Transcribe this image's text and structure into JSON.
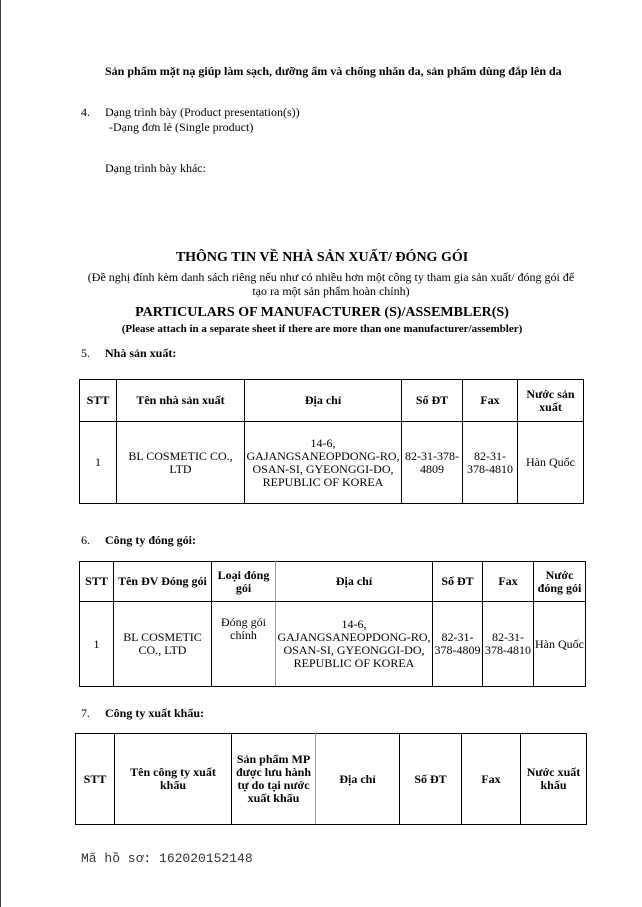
{
  "intro": {
    "product_desc": "Sản phẩm mặt nạ giúp làm sạch, dưỡng ẩm và chống nhăn da, sản phẩm dùng đắp lên da",
    "item4_num": "4.",
    "item4_label": "Dạng trình bày (Product presentation(s))",
    "item4_value": "-Dạng đơn lẻ (Single product)",
    "other_label": "Dạng trình bày khác:"
  },
  "section": {
    "title_vi": "THÔNG TIN VỀ NHÀ SẢN XUẤT/ ĐÓNG GÓI",
    "note_vi": "(Đề nghị đính kèm danh sách riêng nếu như có nhiều hơn một công ty tham gia sản xuất/ đóng gói để tạo ra một sản phẩm hoàn chỉnh)",
    "title_en": "PARTICULARS OF MANUFACTURER (S)/ASSEMBLER(S)",
    "note_en": "(Please attach in a separate sheet if there are more than one manufacturer/assembler)"
  },
  "manufacturer": {
    "num": "5.",
    "label": "Nhà sản xuất:",
    "headers": [
      "STT",
      "Tên nhà sản xuất",
      "Địa chỉ",
      "Số ĐT",
      "Fax",
      "Nước sản xuất"
    ],
    "rows": [
      [
        "1",
        "BL COSMETIC CO., LTD",
        "14-6, GAJANGSANEOPDONG-RO, OSAN-SI, GYEONGGI-DO, REPUBLIC OF KOREA",
        "82-31-378-4809",
        "82-31-378-4810",
        "Hàn Quốc"
      ]
    ]
  },
  "packager": {
    "num": "6.",
    "label": "Công ty đóng gói:",
    "headers": [
      "STT",
      "Tên ĐV Đóng gói",
      "Loại đóng gói",
      "Địa chỉ",
      "Số ĐT",
      "Fax",
      "Nước đóng gói"
    ],
    "rows": [
      [
        "1",
        "BL COSMETIC CO., LTD",
        "Đóng gói chính",
        "14-6, GAJANGSANEOPDONG-RO, OSAN-SI, GYEONGGI-DO, REPUBLIC OF KOREA",
        "82-31-378-4809",
        "82-31-378-4810",
        "Hàn Quốc"
      ]
    ]
  },
  "exporter": {
    "num": "7.",
    "label": "Công ty xuất khẩu:",
    "headers": [
      "STT",
      "Tên công ty xuất khẩu",
      "Sản phẩm MP được lưu hành tự do tại nước xuất khẩu",
      "Địa chỉ",
      "Số ĐT",
      "Fax",
      "Nước xuất khẩu"
    ]
  },
  "footer": {
    "file_code": "Mã hồ sơ: 162020152148"
  }
}
